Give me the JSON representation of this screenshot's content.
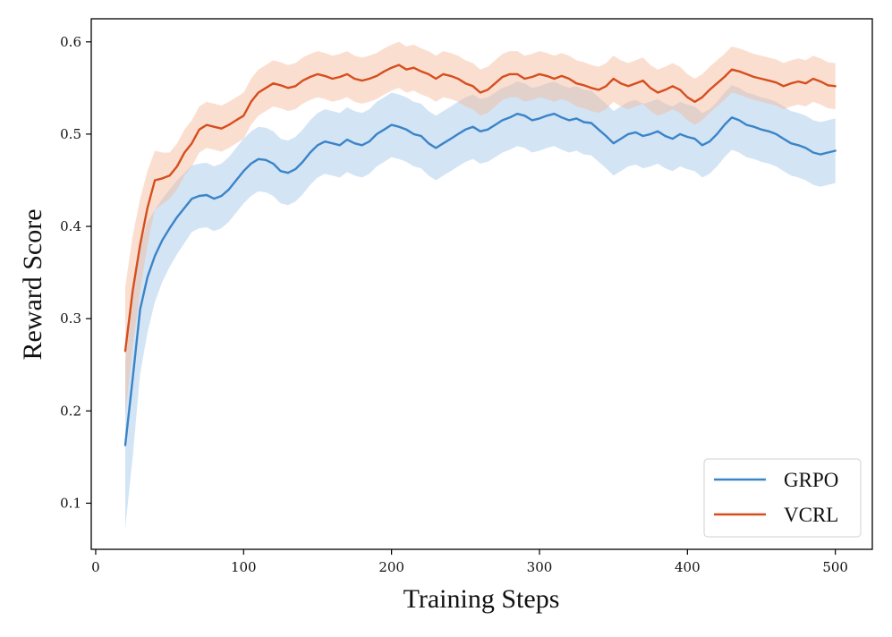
{
  "chart_data": {
    "type": "line",
    "title": "",
    "xlabel": "Training Steps",
    "ylabel": "Reward Score",
    "xlim": [
      -3,
      525
    ],
    "ylim": [
      0.05,
      0.625
    ],
    "xticks": [
      0,
      100,
      200,
      300,
      400,
      500
    ],
    "xtick_labels": [
      "0",
      "100",
      "200",
      "300",
      "400",
      "500"
    ],
    "yticks": [
      0.1,
      0.2,
      0.3,
      0.4,
      0.5,
      0.6
    ],
    "ytick_labels": [
      "0.1",
      "0.2",
      "0.3",
      "0.4",
      "0.5",
      "0.6"
    ],
    "grid": false,
    "legend_position": "bottom-right",
    "series": [
      {
        "name": "GRPO",
        "color": "#3a84c8",
        "band_color": "#9ec3e8",
        "x": [
          20,
          25,
          30,
          35,
          40,
          45,
          50,
          55,
          60,
          65,
          70,
          75,
          80,
          85,
          90,
          95,
          100,
          105,
          110,
          115,
          120,
          125,
          130,
          135,
          140,
          145,
          150,
          155,
          160,
          165,
          170,
          175,
          180,
          185,
          190,
          195,
          200,
          205,
          210,
          215,
          220,
          225,
          230,
          235,
          240,
          245,
          250,
          255,
          260,
          265,
          270,
          275,
          280,
          285,
          290,
          295,
          300,
          305,
          310,
          315,
          320,
          325,
          330,
          335,
          340,
          345,
          350,
          355,
          360,
          365,
          370,
          375,
          380,
          385,
          390,
          395,
          400,
          405,
          410,
          415,
          420,
          425,
          430,
          435,
          440,
          445,
          450,
          455,
          460,
          465,
          470,
          475,
          480,
          485,
          490,
          495,
          500
        ],
        "mean": [
          0.163,
          0.235,
          0.31,
          0.345,
          0.368,
          0.385,
          0.398,
          0.41,
          0.42,
          0.43,
          0.433,
          0.434,
          0.43,
          0.433,
          0.44,
          0.45,
          0.46,
          0.468,
          0.473,
          0.472,
          0.468,
          0.46,
          0.458,
          0.462,
          0.47,
          0.48,
          0.488,
          0.492,
          0.49,
          0.488,
          0.494,
          0.49,
          0.488,
          0.492,
          0.5,
          0.505,
          0.51,
          0.508,
          0.505,
          0.5,
          0.498,
          0.49,
          0.485,
          0.49,
          0.495,
          0.5,
          0.505,
          0.508,
          0.503,
          0.505,
          0.51,
          0.515,
          0.518,
          0.522,
          0.52,
          0.515,
          0.517,
          0.52,
          0.522,
          0.518,
          0.515,
          0.517,
          0.513,
          0.512,
          0.505,
          0.498,
          0.49,
          0.495,
          0.5,
          0.502,
          0.498,
          0.5,
          0.503,
          0.498,
          0.495,
          0.5,
          0.497,
          0.495,
          0.488,
          0.492,
          0.5,
          0.51,
          0.518,
          0.515,
          0.51,
          0.508,
          0.505,
          0.503,
          0.5,
          0.495,
          0.49,
          0.488,
          0.485,
          0.48,
          0.478,
          0.48,
          0.482
        ],
        "half_width": [
          0.09,
          0.085,
          0.07,
          0.06,
          0.05,
          0.045,
          0.042,
          0.04,
          0.038,
          0.036,
          0.035,
          0.035,
          0.035,
          0.035,
          0.035,
          0.035,
          0.035,
          0.035,
          0.035,
          0.035,
          0.035,
          0.035,
          0.035,
          0.035,
          0.035,
          0.035,
          0.035,
          0.035,
          0.035,
          0.035,
          0.035,
          0.035,
          0.035,
          0.035,
          0.035,
          0.035,
          0.035,
          0.035,
          0.035,
          0.035,
          0.035,
          0.035,
          0.035,
          0.035,
          0.035,
          0.035,
          0.035,
          0.035,
          0.035,
          0.035,
          0.035,
          0.035,
          0.035,
          0.035,
          0.035,
          0.035,
          0.035,
          0.035,
          0.035,
          0.035,
          0.035,
          0.035,
          0.035,
          0.035,
          0.035,
          0.035,
          0.035,
          0.035,
          0.035,
          0.035,
          0.035,
          0.035,
          0.035,
          0.035,
          0.035,
          0.035,
          0.035,
          0.035,
          0.035,
          0.035,
          0.035,
          0.035,
          0.035,
          0.035,
          0.035,
          0.035,
          0.035,
          0.035,
          0.035,
          0.035,
          0.035,
          0.035,
          0.035,
          0.035,
          0.035,
          0.035,
          0.035
        ]
      },
      {
        "name": "VCRL",
        "color": "#d64e1e",
        "band_color": "#f3b79a",
        "x": [
          20,
          25,
          30,
          35,
          40,
          45,
          50,
          55,
          60,
          65,
          70,
          75,
          80,
          85,
          90,
          95,
          100,
          105,
          110,
          115,
          120,
          125,
          130,
          135,
          140,
          145,
          150,
          155,
          160,
          165,
          170,
          175,
          180,
          185,
          190,
          195,
          200,
          205,
          210,
          215,
          220,
          225,
          230,
          235,
          240,
          245,
          250,
          255,
          260,
          265,
          270,
          275,
          280,
          285,
          290,
          295,
          300,
          305,
          310,
          315,
          320,
          325,
          330,
          335,
          340,
          345,
          350,
          355,
          360,
          365,
          370,
          375,
          380,
          385,
          390,
          395,
          400,
          405,
          410,
          415,
          420,
          425,
          430,
          435,
          440,
          445,
          450,
          455,
          460,
          465,
          470,
          475,
          480,
          485,
          490,
          495,
          500
        ],
        "mean": [
          0.265,
          0.33,
          0.38,
          0.42,
          0.45,
          0.452,
          0.455,
          0.465,
          0.48,
          0.49,
          0.505,
          0.51,
          0.508,
          0.506,
          0.51,
          0.515,
          0.52,
          0.535,
          0.545,
          0.55,
          0.555,
          0.553,
          0.55,
          0.552,
          0.558,
          0.562,
          0.565,
          0.563,
          0.56,
          0.562,
          0.565,
          0.56,
          0.558,
          0.56,
          0.563,
          0.568,
          0.572,
          0.575,
          0.57,
          0.572,
          0.568,
          0.565,
          0.56,
          0.565,
          0.563,
          0.56,
          0.555,
          0.552,
          0.545,
          0.548,
          0.555,
          0.562,
          0.565,
          0.565,
          0.56,
          0.562,
          0.565,
          0.563,
          0.56,
          0.563,
          0.56,
          0.555,
          0.553,
          0.55,
          0.548,
          0.552,
          0.56,
          0.555,
          0.552,
          0.555,
          0.558,
          0.55,
          0.545,
          0.548,
          0.552,
          0.548,
          0.54,
          0.535,
          0.54,
          0.548,
          0.555,
          0.562,
          0.57,
          0.568,
          0.565,
          0.562,
          0.56,
          0.558,
          0.556,
          0.552,
          0.555,
          0.557,
          0.555,
          0.56,
          0.557,
          0.553,
          0.552
        ],
        "half_width": [
          0.07,
          0.06,
          0.05,
          0.04,
          0.032,
          0.028,
          0.025,
          0.025,
          0.025,
          0.025,
          0.025,
          0.025,
          0.025,
          0.025,
          0.025,
          0.025,
          0.025,
          0.025,
          0.025,
          0.025,
          0.025,
          0.025,
          0.025,
          0.025,
          0.025,
          0.025,
          0.025,
          0.025,
          0.025,
          0.025,
          0.025,
          0.025,
          0.025,
          0.025,
          0.025,
          0.025,
          0.025,
          0.025,
          0.025,
          0.025,
          0.025,
          0.025,
          0.025,
          0.025,
          0.025,
          0.025,
          0.025,
          0.025,
          0.025,
          0.025,
          0.025,
          0.025,
          0.025,
          0.025,
          0.025,
          0.025,
          0.025,
          0.025,
          0.025,
          0.025,
          0.025,
          0.025,
          0.025,
          0.025,
          0.025,
          0.025,
          0.025,
          0.025,
          0.025,
          0.025,
          0.025,
          0.025,
          0.025,
          0.025,
          0.025,
          0.025,
          0.025,
          0.025,
          0.025,
          0.025,
          0.025,
          0.025,
          0.025,
          0.025,
          0.025,
          0.025,
          0.025,
          0.025,
          0.025,
          0.025,
          0.025,
          0.025,
          0.025,
          0.025,
          0.025,
          0.025,
          0.025
        ]
      }
    ]
  }
}
